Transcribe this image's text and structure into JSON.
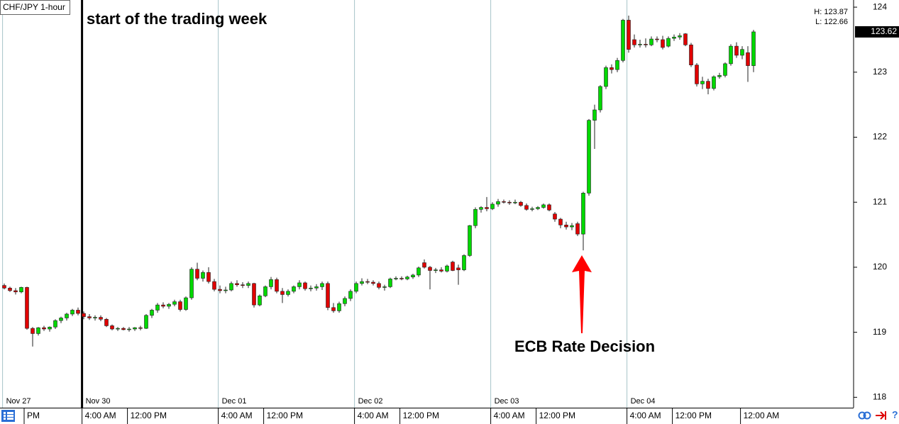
{
  "chart_data": {
    "type": "candlestick",
    "title": "CHF/JPY 1-hour",
    "open": [
      119.72,
      119.68,
      119.64,
      119.62,
      119.69,
      119.06,
      118.98,
      119.07,
      119.05,
      119.08,
      119.18,
      119.22,
      119.28,
      119.34,
      119.29,
      119.24,
      119.22,
      119.23,
      119.2,
      119.1,
      119.05,
      119.06,
      119.04,
      119.05,
      119.07,
      119.06,
      119.26,
      119.34,
      119.42,
      119.4,
      119.43,
      119.47,
      119.35,
      119.53,
      119.97,
      119.83,
      119.92,
      119.78,
      119.66,
      119.64,
      119.65,
      119.75,
      119.73,
      119.72,
      119.75,
      119.42,
      119.56,
      119.7,
      119.81,
      119.63,
      119.58,
      119.63,
      119.7,
      119.76,
      119.67,
      119.68,
      119.7,
      119.75,
      119.38,
      119.33,
      119.44,
      119.52,
      119.63,
      119.75,
      119.78,
      119.77,
      119.75,
      119.69,
      119.7,
      119.82,
      119.83,
      119.82,
      119.85,
      119.88,
      120.07,
      120.0,
      119.95,
      119.96,
      119.94,
      120.08,
      119.99,
      119.96,
      120.18,
      120.64,
      120.89,
      120.92,
      120.9,
      120.97,
      121.01,
      121.0,
      120.99,
      121.0,
      120.95,
      120.89,
      120.9,
      120.92,
      120.96,
      120.82,
      120.74,
      120.65,
      120.62,
      120.67,
      120.51,
      121.14,
      122.26,
      122.42,
      122.78,
      123.07,
      123.04,
      123.18,
      123.8,
      123.5,
      123.42,
      123.43,
      123.42,
      123.51,
      123.5,
      123.4,
      123.52,
      123.54,
      123.59,
      123.42,
      123.11,
      122.82,
      122.86,
      122.75,
      122.93,
      122.95,
      123.13,
      123.4,
      123.26,
      123.3,
      123.1
    ],
    "high": [
      119.75,
      119.7,
      119.68,
      119.7,
      119.7,
      119.08,
      119.08,
      119.1,
      119.09,
      119.2,
      119.24,
      119.3,
      119.36,
      119.38,
      119.32,
      119.28,
      119.26,
      119.26,
      119.22,
      119.12,
      119.08,
      119.08,
      119.08,
      119.08,
      119.1,
      119.28,
      119.36,
      119.45,
      119.46,
      119.45,
      119.5,
      119.5,
      119.55,
      120.0,
      120.07,
      119.95,
      120.0,
      119.82,
      119.72,
      119.7,
      119.78,
      119.8,
      119.77,
      119.78,
      119.76,
      119.58,
      119.72,
      119.85,
      119.84,
      119.68,
      119.66,
      119.72,
      119.8,
      119.78,
      119.72,
      119.74,
      119.78,
      119.78,
      119.45,
      119.47,
      119.55,
      119.66,
      119.78,
      119.83,
      119.82,
      119.8,
      119.78,
      119.73,
      119.84,
      119.86,
      119.86,
      119.87,
      119.9,
      120.01,
      120.12,
      120.02,
      119.99,
      120.0,
      120.04,
      120.1,
      120.04,
      120.2,
      120.65,
      120.92,
      120.94,
      121.08,
      121.0,
      121.05,
      121.04,
      121.03,
      121.04,
      121.02,
      120.98,
      120.93,
      120.94,
      120.98,
      120.98,
      120.85,
      120.76,
      120.7,
      120.68,
      120.7,
      121.16,
      122.28,
      122.5,
      122.8,
      123.1,
      123.12,
      123.22,
      123.82,
      123.87,
      123.58,
      123.5,
      123.52,
      123.55,
      123.55,
      123.56,
      123.55,
      123.58,
      123.6,
      123.6,
      123.45,
      123.14,
      122.93,
      122.9,
      122.95,
      122.99,
      123.15,
      123.43,
      123.46,
      123.4,
      123.4,
      123.65
    ],
    "low": [
      119.66,
      119.62,
      119.58,
      119.6,
      119.04,
      118.78,
      118.95,
      119.02,
      119.01,
      119.05,
      119.14,
      119.18,
      119.25,
      119.26,
      119.2,
      119.19,
      119.18,
      119.17,
      119.08,
      119.03,
      119.02,
      119.03,
      119.01,
      119.02,
      119.03,
      119.05,
      119.22,
      119.3,
      119.37,
      119.36,
      119.4,
      119.32,
      119.33,
      119.5,
      119.8,
      119.78,
      119.75,
      119.63,
      119.6,
      119.6,
      119.63,
      119.7,
      119.68,
      119.68,
      119.38,
      119.4,
      119.54,
      119.66,
      119.6,
      119.45,
      119.55,
      119.6,
      119.66,
      119.64,
      119.63,
      119.64,
      119.65,
      119.34,
      119.3,
      119.3,
      119.4,
      119.48,
      119.6,
      119.72,
      119.74,
      119.72,
      119.66,
      119.64,
      119.68,
      119.8,
      119.8,
      119.8,
      119.82,
      119.85,
      119.98,
      119.66,
      119.91,
      119.92,
      119.92,
      119.94,
      119.73,
      119.94,
      120.16,
      120.6,
      120.84,
      120.86,
      120.88,
      120.93,
      120.98,
      120.96,
      120.97,
      120.93,
      120.87,
      120.86,
      120.88,
      120.9,
      120.86,
      120.7,
      120.6,
      120.58,
      120.57,
      120.48,
      120.26,
      121.1,
      121.82,
      122.38,
      122.74,
      122.98,
      123.0,
      123.15,
      123.3,
      123.38,
      123.38,
      123.38,
      123.4,
      123.46,
      123.35,
      123.38,
      123.48,
      123.5,
      123.4,
      123.08,
      122.78,
      122.74,
      122.66,
      122.72,
      122.9,
      122.92,
      123.1,
      123.22,
      123.2,
      122.85,
      123.0
    ],
    "close": [
      119.68,
      119.64,
      119.62,
      119.69,
      119.06,
      118.98,
      119.07,
      119.05,
      119.08,
      119.18,
      119.22,
      119.28,
      119.34,
      119.29,
      119.24,
      119.22,
      119.23,
      119.2,
      119.1,
      119.05,
      119.06,
      119.04,
      119.05,
      119.07,
      119.06,
      119.26,
      119.34,
      119.42,
      119.4,
      119.43,
      119.47,
      119.35,
      119.53,
      119.97,
      119.83,
      119.92,
      119.78,
      119.66,
      119.64,
      119.65,
      119.75,
      119.73,
      119.72,
      119.75,
      119.42,
      119.56,
      119.7,
      119.81,
      119.63,
      119.58,
      119.63,
      119.7,
      119.76,
      119.67,
      119.68,
      119.7,
      119.75,
      119.38,
      119.33,
      119.44,
      119.52,
      119.63,
      119.75,
      119.78,
      119.77,
      119.75,
      119.69,
      119.7,
      119.82,
      119.83,
      119.82,
      119.85,
      119.88,
      119.99,
      120.0,
      119.95,
      119.96,
      119.94,
      120.02,
      119.95,
      119.96,
      120.18,
      120.64,
      120.89,
      120.92,
      120.9,
      120.97,
      121.01,
      121.0,
      120.99,
      121.0,
      120.95,
      120.89,
      120.9,
      120.92,
      120.96,
      120.88,
      120.74,
      120.65,
      120.62,
      120.64,
      120.51,
      121.14,
      122.26,
      122.42,
      122.78,
      123.07,
      123.04,
      123.18,
      123.8,
      123.35,
      123.42,
      123.43,
      123.42,
      123.51,
      123.5,
      123.38,
      123.52,
      123.54,
      123.56,
      123.42,
      123.11,
      122.82,
      122.86,
      122.75,
      122.93,
      122.95,
      123.13,
      123.4,
      123.26,
      123.35,
      123.1,
      123.62
    ],
    "up_color": "#00d800",
    "down_color": "#e00000",
    "ylim": [
      117.84,
      124.11
    ],
    "yticks": [
      118,
      119,
      120,
      121,
      122,
      123,
      124
    ],
    "xlim": [
      -0.75,
      149.625
    ],
    "xticks": [
      {
        "value": 3.5,
        "label": "PM"
      },
      {
        "value": 13.7,
        "label": "4:00 AM"
      },
      {
        "value": 21.7,
        "label": "12:00 PM"
      },
      {
        "value": 37.7,
        "label": "4:00 AM"
      },
      {
        "value": 45.7,
        "label": "12:00 PM"
      },
      {
        "value": 61.7,
        "label": "4:00 AM"
      },
      {
        "value": 69.7,
        "label": "12:00 PM"
      },
      {
        "value": 85.7,
        "label": "4:00 AM"
      },
      {
        "value": 93.7,
        "label": "12:00 PM"
      },
      {
        "value": 109.7,
        "label": "4:00 AM"
      },
      {
        "value": 117.7,
        "label": "12:00 PM"
      },
      {
        "value": 129.7,
        "label": "12:00 AM"
      }
    ],
    "date_ticks": [
      {
        "value": -0.3,
        "label": "Nov 27"
      },
      {
        "value": 13.7,
        "label": "Nov 30"
      },
      {
        "value": 37.7,
        "label": "Dec 01"
      },
      {
        "value": 61.7,
        "label": "Dec 02"
      },
      {
        "value": 85.7,
        "label": "Dec 03"
      },
      {
        "value": 109.7,
        "label": "Dec 04"
      }
    ],
    "high_label": {
      "value": 123.87,
      "label": "H: 123.87"
    },
    "low_label": {
      "value": 122.66,
      "label": "L: 122.66"
    },
    "last_price": 123.62,
    "annotations": [
      {
        "text": "start of the trading week",
        "x": 13.7
      },
      {
        "text": "ECB Rate Decision",
        "x": 102
      }
    ]
  }
}
